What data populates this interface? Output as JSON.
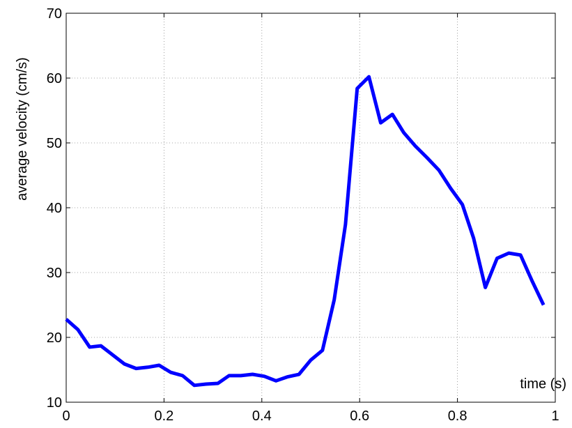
{
  "chart_data": {
    "type": "line",
    "x_label": "time (s)",
    "y_label": "average velocity (cm/s)",
    "x": [
      0,
      0.024,
      0.048,
      0.071,
      0.095,
      0.119,
      0.143,
      0.167,
      0.19,
      0.214,
      0.238,
      0.262,
      0.286,
      0.31,
      0.333,
      0.357,
      0.381,
      0.405,
      0.429,
      0.452,
      0.476,
      0.5,
      0.524,
      0.548,
      0.571,
      0.595,
      0.619,
      0.643,
      0.667,
      0.69,
      0.714,
      0.738,
      0.762,
      0.786,
      0.81,
      0.833,
      0.857,
      0.881,
      0.905,
      0.929,
      0.952,
      0.976
    ],
    "series": [
      {
        "name": "average velocity",
        "color": "#0000ff",
        "values": [
          22.8,
          21.2,
          18.5,
          18.7,
          17.3,
          15.9,
          15.2,
          15.4,
          15.7,
          14.6,
          14.1,
          12.6,
          12.8,
          12.9,
          14.1,
          14.1,
          14.3,
          14.0,
          13.3,
          13.9,
          14.3,
          16.5,
          18.0,
          25.8,
          37.4,
          58.4,
          60.2,
          53.1,
          54.4,
          51.6,
          49.5,
          47.7,
          45.8,
          43.0,
          40.5,
          35.3,
          27.7,
          32.2,
          33.0,
          32.7,
          28.8,
          25.0
        ]
      }
    ],
    "xlim": [
      0,
      1
    ],
    "xticks": [
      0,
      0.2,
      0.4,
      0.6,
      0.8,
      1
    ],
    "ylim": [
      10,
      70
    ],
    "yticks": [
      10,
      20,
      30,
      40,
      50,
      60,
      70
    ],
    "grid": true
  }
}
